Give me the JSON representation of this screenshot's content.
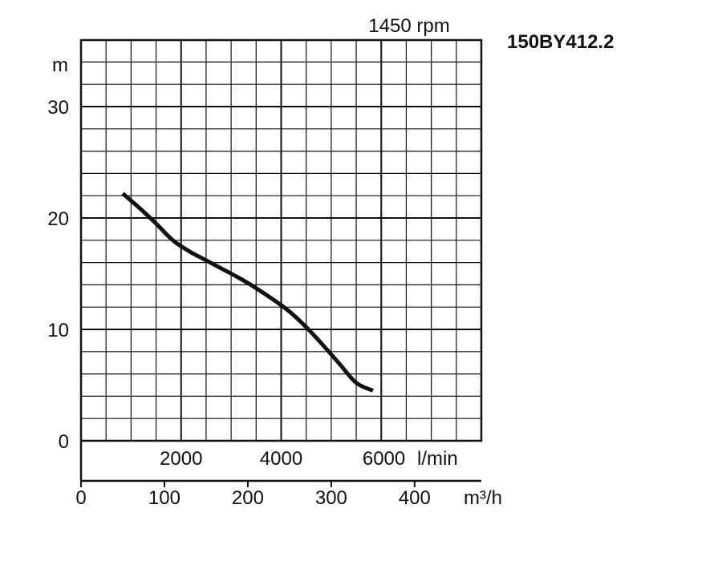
{
  "chart_data": {
    "type": "line",
    "model": "150BY412.2",
    "speed_label": "1450 rpm",
    "y_unit": "m",
    "x_unit": "m³/h",
    "x_secondary_unit": "l/min",
    "ylim": [
      0,
      30
    ],
    "xlim": [
      0,
      480
    ],
    "grid": true,
    "y_ticks": [
      "0",
      "10",
      "20",
      "30"
    ],
    "y_tick_values": [
      0,
      10,
      20,
      30
    ],
    "x_ticks": [
      "0",
      "100",
      "200",
      "300",
      "400"
    ],
    "x_tick_values": [
      0,
      100,
      200,
      300,
      400
    ],
    "x_secondary_ticks": [
      "2000",
      "4000",
      "6000"
    ],
    "x_secondary_tick_values": [
      120,
      240,
      360
    ],
    "series": [
      {
        "x": [
          50,
          70,
          90,
          110,
          130,
          150,
          170,
          190,
          210,
          230,
          250,
          270,
          290,
          310,
          330,
          350
        ],
        "y": [
          22.2,
          20.9,
          19.5,
          18.0,
          17.0,
          16.2,
          15.4,
          14.6,
          13.7,
          12.7,
          11.6,
          10.2,
          8.6,
          6.9,
          5.2,
          4.5
        ]
      }
    ]
  }
}
